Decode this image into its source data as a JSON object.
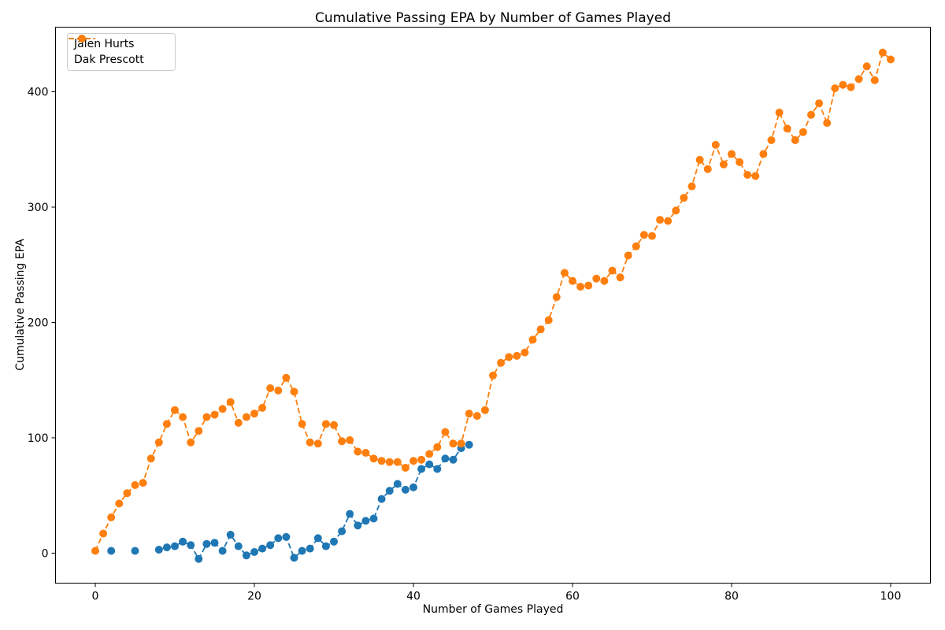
{
  "chart_data": {
    "type": "line",
    "title": "Cumulative Passing EPA by Number of Games Played",
    "xlabel": "Number of Games Played",
    "ylabel": "Cumulative Passing EPA",
    "xticks": [
      0,
      20,
      40,
      60,
      80,
      100
    ],
    "yticks": [
      0,
      100,
      200,
      300,
      400
    ],
    "xlim": [
      -5,
      105
    ],
    "ylim": [
      -26,
      456
    ],
    "grid": false,
    "background": "#ffffff",
    "spine_color": "#000000",
    "line_style": "dashed",
    "marker": "circle",
    "legend_position": "upper-left",
    "series": [
      {
        "name": "Jalen Hurts",
        "color": "#1f77b4",
        "x": [
          2,
          3,
          4,
          5,
          6,
          7,
          8,
          9,
          10,
          11,
          12,
          13,
          14,
          15,
          16,
          17,
          18,
          19,
          20,
          21,
          22,
          23,
          24,
          25,
          26,
          27,
          28,
          29,
          30,
          31,
          32,
          33,
          34,
          35,
          36,
          37,
          38,
          39,
          40,
          41,
          42,
          43,
          44,
          45,
          46,
          47
        ],
        "y": [
          2,
          null,
          null,
          2,
          null,
          null,
          3,
          5,
          6,
          10,
          7,
          -5,
          8,
          9,
          2,
          16,
          6,
          -2,
          1,
          4,
          7,
          13,
          14,
          -4,
          2,
          4,
          13,
          6,
          10,
          19,
          34,
          24,
          28,
          30,
          47,
          54,
          60,
          55,
          57,
          73,
          77,
          73,
          82,
          81,
          91,
          94
        ]
      },
      {
        "name": "Dak Prescott",
        "color": "#ff7f0e",
        "x": [
          0,
          1,
          2,
          3,
          4,
          5,
          6,
          7,
          8,
          9,
          10,
          11,
          12,
          13,
          14,
          15,
          16,
          17,
          18,
          19,
          20,
          21,
          22,
          23,
          24,
          25,
          26,
          27,
          28,
          29,
          30,
          31,
          32,
          33,
          34,
          35,
          36,
          37,
          38,
          39,
          40,
          41,
          42,
          43,
          44,
          45,
          46,
          47,
          48,
          49,
          50,
          51,
          52,
          53,
          54,
          55,
          56,
          57,
          58,
          59,
          60,
          61,
          62,
          63,
          64,
          65,
          66,
          67,
          68,
          69,
          70,
          71,
          72,
          73,
          74,
          75,
          76,
          77,
          78,
          79,
          80,
          81,
          82,
          83,
          84,
          85,
          86,
          87,
          88,
          89,
          90,
          91,
          92,
          93,
          94,
          95,
          96,
          97,
          98,
          99,
          100
        ],
        "y": [
          2,
          17,
          31,
          43,
          52,
          59,
          61,
          82,
          96,
          112,
          124,
          118,
          96,
          106,
          118,
          120,
          125,
          131,
          113,
          118,
          121,
          126,
          143,
          141,
          152,
          140,
          112,
          96,
          95,
          112,
          111,
          97,
          98,
          88,
          87,
          82,
          80,
          79,
          79,
          74,
          80,
          81,
          86,
          92,
          105,
          95,
          95,
          121,
          119,
          124,
          154,
          165,
          170,
          171,
          174,
          185,
          194,
          202,
          222,
          243,
          236,
          231,
          232,
          238,
          236,
          245,
          239,
          258,
          266,
          276,
          275,
          289,
          288,
          297,
          308,
          318,
          341,
          333,
          354,
          337,
          346,
          339,
          328,
          327,
          346,
          358,
          382,
          368,
          358,
          365,
          380,
          390,
          373,
          403,
          406,
          404,
          411,
          422,
          410,
          434,
          428
        ]
      }
    ]
  }
}
